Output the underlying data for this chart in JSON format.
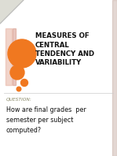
{
  "title_lines": [
    "MEASURES OF",
    "CENTRAL",
    "TENDENCY AND",
    "VARIABILITY"
  ],
  "question_label": "QUESTION:",
  "question_text": "How are final grades  per\nsemester per subject\ncomputed?",
  "bg_color": "#ffffff",
  "title_color": "#111111",
  "orange_color": "#f07820",
  "pink_light": "#e8b8a8",
  "pink_mid": "#d49080",
  "question_label_color": "#888866",
  "question_text_color": "#111111",
  "fold_color": "#ddddd5",
  "right_stripe_color": "#c8b0a8"
}
